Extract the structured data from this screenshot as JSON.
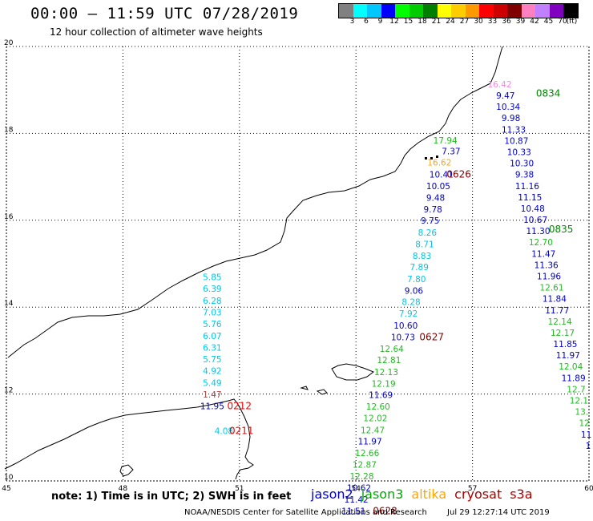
{
  "header": {
    "title": "00:00 – 11:59 UTC 07/28/2019",
    "subtitle": "12 hour collection of altimeter wave heights"
  },
  "legend": {
    "colors": [
      "#808080",
      "#00ffff",
      "#00c8ff",
      "#0000ff",
      "#00ff00",
      "#00cc00",
      "#008000",
      "#ffff00",
      "#ffcc00",
      "#ff9900",
      "#ff0000",
      "#cc0000",
      "#800000",
      "#ff80c0",
      "#c080ff",
      "#8000c0",
      "#000000"
    ],
    "ticks": [
      "3",
      "6",
      "9",
      "12",
      "15",
      "18",
      "21",
      "24",
      "27",
      "30",
      "33",
      "36",
      "39",
      "42",
      "45",
      "70",
      "(ft)"
    ]
  },
  "axes": {
    "x_ticks": [
      "45",
      "48",
      "51",
      "54",
      "57",
      "60"
    ],
    "y_ticks": [
      "20",
      "18",
      "16",
      "14",
      "12",
      "10"
    ]
  },
  "satellite_colors": {
    "jason2": "#0000cc",
    "jason3": "#00aa00",
    "altika": "#ffa500",
    "cryosat": "#aa0000",
    "s3a": "#aa0000"
  },
  "observations": [
    {
      "lon": 56.3,
      "lat": 17.77,
      "value": "17.94",
      "sat": "jason3"
    },
    {
      "lon": 56.45,
      "lat": 17.52,
      "value": "7.37",
      "sat": "jason2"
    },
    {
      "lon": 56.15,
      "lat": 17.26,
      "value": "16.62",
      "sat": "altika"
    },
    {
      "lon": 56.2,
      "lat": 16.98,
      "value": "10.41",
      "sat": "jason2"
    },
    {
      "lon": 56.12,
      "lat": 16.72,
      "value": "10.05",
      "sat": "jason2"
    },
    {
      "lon": 56.05,
      "lat": 16.45,
      "value": "9.48",
      "sat": "jason2"
    },
    {
      "lon": 55.98,
      "lat": 16.18,
      "value": "9.78",
      "sat": "jason2"
    },
    {
      "lon": 55.91,
      "lat": 15.92,
      "value": "9.75",
      "sat": "jason2"
    },
    {
      "lon": 55.84,
      "lat": 15.65,
      "value": "8.26",
      "sat": "altika_cyan"
    },
    {
      "lon": 55.77,
      "lat": 15.38,
      "value": "8.71",
      "sat": "altika_cyan"
    },
    {
      "lon": 55.7,
      "lat": 15.11,
      "value": "8.83",
      "sat": "altika_cyan"
    },
    {
      "lon": 55.63,
      "lat": 14.85,
      "value": "7.89",
      "sat": "altika_cyan"
    },
    {
      "lon": 55.56,
      "lat": 14.58,
      "value": "7.80",
      "sat": "altika_cyan"
    },
    {
      "lon": 55.49,
      "lat": 14.31,
      "value": "9.06",
      "sat": "jason2"
    },
    {
      "lon": 55.42,
      "lat": 14.05,
      "value": "8.28",
      "sat": "altika_cyan"
    },
    {
      "lon": 55.35,
      "lat": 13.78,
      "value": "7.92",
      "sat": "altika_cyan"
    },
    {
      "lon": 55.28,
      "lat": 13.51,
      "value": "10.60",
      "sat": "jason2"
    },
    {
      "lon": 55.21,
      "lat": 13.24,
      "value": "10.73",
      "sat": "jason2"
    },
    {
      "lon": 54.92,
      "lat": 12.97,
      "value": "12.64",
      "sat": "jason3"
    },
    {
      "lon": 54.85,
      "lat": 12.71,
      "value": "12.81",
      "sat": "jason3"
    },
    {
      "lon": 54.78,
      "lat": 12.44,
      "value": "12.13",
      "sat": "jason3"
    },
    {
      "lon": 54.71,
      "lat": 12.17,
      "value": "12.19",
      "sat": "jason3"
    },
    {
      "lon": 54.64,
      "lat": 11.91,
      "value": "11.69",
      "sat": "jason2"
    },
    {
      "lon": 54.57,
      "lat": 11.64,
      "value": "12.60",
      "sat": "jason3"
    },
    {
      "lon": 54.5,
      "lat": 11.37,
      "value": "12.02",
      "sat": "jason3"
    },
    {
      "lon": 54.43,
      "lat": 11.1,
      "value": "12.47",
      "sat": "jason3"
    },
    {
      "lon": 54.36,
      "lat": 10.84,
      "value": "11.97",
      "sat": "jason2"
    },
    {
      "lon": 54.29,
      "lat": 10.57,
      "value": "12.66",
      "sat": "jason3"
    },
    {
      "lon": 54.22,
      "lat": 10.3,
      "value": "12.87",
      "sat": "jason3"
    },
    {
      "lon": 54.15,
      "lat": 10.04,
      "value": "12.28",
      "sat": "jason3"
    },
    {
      "lon": 54.08,
      "lat": 9.77,
      "value": "10.62",
      "sat": "jason2"
    },
    {
      "lon": 54.01,
      "lat": 9.5,
      "value": "11.42",
      "sat": "jason2"
    },
    {
      "lon": 53.94,
      "lat": 9.23,
      "value": "11.51",
      "sat": "jason2"
    },
    {
      "lon": 57.7,
      "lat": 19.06,
      "value": "16.42",
      "sat": "pink"
    },
    {
      "lon": 57.85,
      "lat": 18.8,
      "value": "9.47",
      "sat": "jason2"
    },
    {
      "lon": 57.92,
      "lat": 18.54,
      "value": "10.34",
      "sat": "jason2"
    },
    {
      "lon": 57.99,
      "lat": 18.28,
      "value": "9.98",
      "sat": "jason2"
    },
    {
      "lon": 58.06,
      "lat": 18.02,
      "value": "11.33",
      "sat": "jason2"
    },
    {
      "lon": 58.13,
      "lat": 17.76,
      "value": "10.87",
      "sat": "jason2"
    },
    {
      "lon": 58.2,
      "lat": 17.5,
      "value": "10.33",
      "sat": "jason2"
    },
    {
      "lon": 58.27,
      "lat": 17.24,
      "value": "10.30",
      "sat": "jason2"
    },
    {
      "lon": 58.34,
      "lat": 16.98,
      "value": "9.38",
      "sat": "jason2"
    },
    {
      "lon": 58.41,
      "lat": 16.72,
      "value": "11.16",
      "sat": "jason2"
    },
    {
      "lon": 58.48,
      "lat": 16.46,
      "value": "11.15",
      "sat": "jason2"
    },
    {
      "lon": 58.55,
      "lat": 16.2,
      "value": "10.48",
      "sat": "jason2"
    },
    {
      "lon": 58.62,
      "lat": 15.94,
      "value": "10.67",
      "sat": "jason2"
    },
    {
      "lon": 58.69,
      "lat": 15.68,
      "value": "11.30",
      "sat": "jason2"
    },
    {
      "lon": 58.76,
      "lat": 15.42,
      "value": "12.70",
      "sat": "jason3"
    },
    {
      "lon": 58.83,
      "lat": 15.16,
      "value": "11.47",
      "sat": "jason2"
    },
    {
      "lon": 58.9,
      "lat": 14.9,
      "value": "11.36",
      "sat": "jason2"
    },
    {
      "lon": 58.97,
      "lat": 14.64,
      "value": "11.96",
      "sat": "jason2"
    },
    {
      "lon": 59.04,
      "lat": 14.38,
      "value": "12.61",
      "sat": "jason3"
    },
    {
      "lon": 59.11,
      "lat": 14.12,
      "value": "11.84",
      "sat": "jason2"
    },
    {
      "lon": 59.18,
      "lat": 13.86,
      "value": "11.77",
      "sat": "jason2"
    },
    {
      "lon": 59.25,
      "lat": 13.6,
      "value": "12.14",
      "sat": "jason3"
    },
    {
      "lon": 59.32,
      "lat": 13.34,
      "value": "12.17",
      "sat": "jason3"
    },
    {
      "lon": 59.39,
      "lat": 13.08,
      "value": "11.85",
      "sat": "jason2"
    },
    {
      "lon": 59.46,
      "lat": 12.82,
      "value": "11.97",
      "sat": "jason2"
    },
    {
      "lon": 59.53,
      "lat": 12.56,
      "value": "12.04",
      "sat": "jason3"
    },
    {
      "lon": 59.6,
      "lat": 12.3,
      "value": "11.89",
      "sat": "jason2"
    },
    {
      "lon": 59.67,
      "lat": 12.04,
      "value": "12.7",
      "sat": "jason3"
    },
    {
      "lon": 59.74,
      "lat": 11.78,
      "value": "12.1",
      "sat": "jason3"
    },
    {
      "lon": 59.81,
      "lat": 11.52,
      "value": "13.",
      "sat": "jason3"
    },
    {
      "lon": 59.88,
      "lat": 11.26,
      "value": "12",
      "sat": "jason3"
    },
    {
      "lon": 59.93,
      "lat": 11.0,
      "value": "11",
      "sat": "jason2"
    },
    {
      "lon": 59.98,
      "lat": 10.74,
      "value": "1",
      "sat": "jason2"
    },
    {
      "lon": 50.3,
      "lat": 14.62,
      "value": "5.85",
      "sat": "altika_cyan"
    },
    {
      "lon": 50.3,
      "lat": 14.35,
      "value": "6.39",
      "sat": "altika_cyan"
    },
    {
      "lon": 50.3,
      "lat": 14.08,
      "value": "6.28",
      "sat": "altika_cyan"
    },
    {
      "lon": 50.3,
      "lat": 13.81,
      "value": "7.03",
      "sat": "altika_cyan"
    },
    {
      "lon": 50.3,
      "lat": 13.54,
      "value": "5.76",
      "sat": "altika_cyan"
    },
    {
      "lon": 50.3,
      "lat": 13.27,
      "value": "6.07",
      "sat": "altika_cyan"
    },
    {
      "lon": 50.3,
      "lat": 13.0,
      "value": "6.31",
      "sat": "altika_cyan"
    },
    {
      "lon": 50.3,
      "lat": 12.73,
      "value": "5.75",
      "sat": "altika_cyan"
    },
    {
      "lon": 50.3,
      "lat": 12.46,
      "value": "4.92",
      "sat": "altika_cyan"
    },
    {
      "lon": 50.3,
      "lat": 12.19,
      "value": "5.49",
      "sat": "altika_cyan"
    },
    {
      "lon": 50.3,
      "lat": 11.92,
      "value": "1.47",
      "sat": "cryosat"
    },
    {
      "lon": 50.3,
      "lat": 11.65,
      "value": "11.95",
      "sat": "jason2"
    },
    {
      "lon": 50.6,
      "lat": 11.08,
      "value": "4.08",
      "sat": "altika_cyan"
    }
  ],
  "time_labels": [
    {
      "lon": 58.95,
      "lat": 18.85,
      "text": "0834",
      "sat": "jason3"
    },
    {
      "lon": 59.28,
      "lat": 15.72,
      "text": "0835",
      "sat": "jason3"
    },
    {
      "lon": 56.65,
      "lat": 16.98,
      "text": "0626",
      "sat": "cryosat"
    },
    {
      "lon": 55.95,
      "lat": 13.24,
      "text": "0627",
      "sat": "cryosat"
    },
    {
      "lon": 54.75,
      "lat": 9.23,
      "text": "0628",
      "sat": "cryosat"
    },
    {
      "lon": 51.0,
      "lat": 11.65,
      "text": "0212",
      "sat": "s3a_red"
    },
    {
      "lon": 51.05,
      "lat": 11.08,
      "text": "0211",
      "sat": "s3a_red"
    }
  ],
  "note": "note: 1) Time is in UTC; 2) SWH is in feet",
  "satellites": [
    {
      "label": "jason2",
      "color": "#0000cc"
    },
    {
      "label": "jason3",
      "color": "#00aa00"
    },
    {
      "label": "altika",
      "color": "#ffa500"
    },
    {
      "label": "cryosat",
      "color": "#aa0000"
    },
    {
      "label": "s3a",
      "color": "#aa0000"
    }
  ],
  "footer": {
    "credit": "NOAA/NESDIS Center for Satellite Applications and Research",
    "timestamp": "Jul 29 12:27:14 UTC 2019"
  }
}
